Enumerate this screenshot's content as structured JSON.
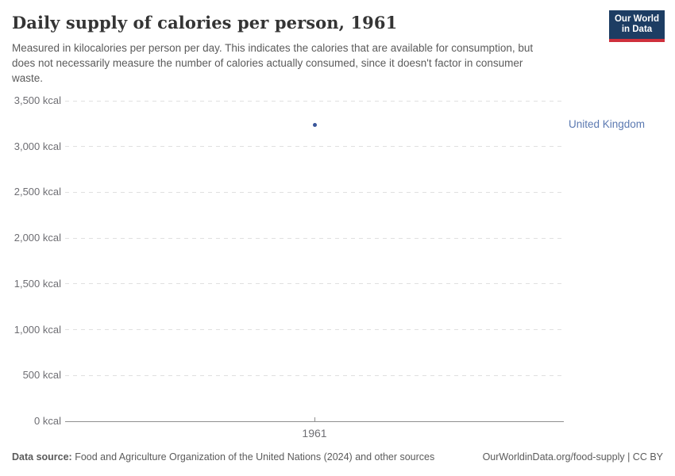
{
  "header": {
    "title": "Daily supply of calories per person, 1961",
    "subtitle_lines": [
      "Measured in kilocalories per person per day. This indicates the calories that are available for consumption, but",
      "does not necessarily measure the number of calories actually consumed, since it doesn't factor in consumer",
      "waste."
    ],
    "logo": {
      "line1": "Our World",
      "line2": "in Data"
    }
  },
  "chart_data": {
    "type": "scatter",
    "title": "Daily supply of calories per person, 1961",
    "x": [
      1961
    ],
    "series": [
      {
        "name": "United Kingdom",
        "values": [
          3240
        ],
        "color": "#3a569a",
        "label_color": "#5b79b1"
      }
    ],
    "ylabel": "kcal",
    "ylim": [
      0,
      3500
    ],
    "yticks": [
      {
        "v": 0,
        "label": "0 kcal"
      },
      {
        "v": 500,
        "label": "500 kcal"
      },
      {
        "v": 1000,
        "label": "1,000 kcal"
      },
      {
        "v": 1500,
        "label": "1,500 kcal"
      },
      {
        "v": 2000,
        "label": "2,000 kcal"
      },
      {
        "v": 2500,
        "label": "2,500 kcal"
      },
      {
        "v": 3000,
        "label": "3,000 kcal"
      },
      {
        "v": 3500,
        "label": "3,500 kcal"
      }
    ],
    "xticks": [
      "1961"
    ],
    "grid": "horizontal-dashed",
    "legend_position": "inline-right"
  },
  "footer": {
    "source_label": "Data source:",
    "source_text": " Food and Agriculture Organization of the United Nations (2024) and other sources",
    "right_text": "OurWorldinData.org/food-supply | CC BY"
  },
  "colors": {
    "logo_navy": "#1d3d63",
    "logo_red": "#cf303c",
    "grid": "#e0e0e0",
    "axis": "#8f8f8f",
    "muted_text": "#5b5b5b",
    "tick_label": "#6e6e73"
  }
}
